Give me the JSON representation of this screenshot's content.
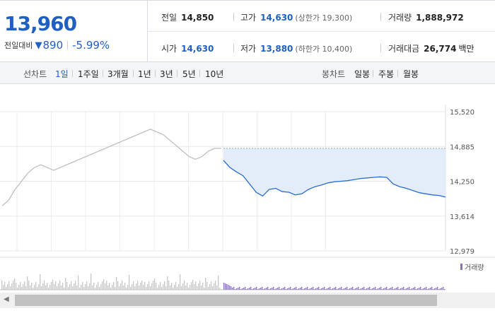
{
  "quote": {
    "price": "13,960",
    "change_label": "전일대비",
    "change_arrow": "▼",
    "change": "890",
    "change_pct": "-5.99%"
  },
  "stats": {
    "prev_label": "전일",
    "prev": "14,850",
    "high_label": "고가",
    "high": "14,630",
    "upper_limit": "(상한가 19,300)",
    "volume_label": "거래량",
    "volume": "1,888,972",
    "open_label": "시가",
    "open": "14,630",
    "low_label": "저가",
    "low": "13,880",
    "lower_limit": "(하한가 10,400)",
    "amount_label": "거래대금",
    "amount": "26,774",
    "amount_unit": "백만"
  },
  "tabs": {
    "line_label": "선차트",
    "periods": [
      "1일",
      "1주일",
      "3개월",
      "1년",
      "3년",
      "5년",
      "10년"
    ],
    "active_period": "1일",
    "candle_label": "봉차트",
    "candles": [
      "일봉",
      "주봉",
      "월봉"
    ]
  },
  "chart_data": {
    "type": "line",
    "y_ticks": [
      "15,520",
      "14,885",
      "14,250",
      "13,614",
      "12,979"
    ],
    "ylim": [
      12979,
      15520
    ],
    "prev_close": 14850,
    "prev_day_series": [
      [
        0,
        13800
      ],
      [
        1,
        13900
      ],
      [
        2,
        14100
      ],
      [
        3,
        14250
      ],
      [
        4,
        14400
      ],
      [
        5,
        14500
      ],
      [
        6,
        14550
      ],
      [
        7,
        14500
      ],
      [
        8,
        14450
      ],
      [
        9,
        14500
      ],
      [
        10,
        14550
      ],
      [
        11,
        14600
      ],
      [
        12,
        14650
      ],
      [
        13,
        14700
      ],
      [
        14,
        14750
      ],
      [
        15,
        14800
      ],
      [
        16,
        14850
      ],
      [
        17,
        14900
      ],
      [
        18,
        14950
      ],
      [
        19,
        15000
      ],
      [
        20,
        15050
      ],
      [
        21,
        15100
      ],
      [
        22,
        15150
      ],
      [
        23,
        15200
      ],
      [
        24,
        15150
      ],
      [
        25,
        15100
      ],
      [
        26,
        15000
      ],
      [
        27,
        14900
      ],
      [
        28,
        14800
      ],
      [
        29,
        14700
      ],
      [
        30,
        14650
      ],
      [
        31,
        14700
      ],
      [
        32,
        14800
      ],
      [
        33,
        14850
      ],
      [
        34,
        14850
      ]
    ],
    "today_series": [
      [
        0,
        14630
      ],
      [
        1,
        14500
      ],
      [
        2,
        14420
      ],
      [
        3,
        14350
      ],
      [
        4,
        14200
      ],
      [
        5,
        14050
      ],
      [
        6,
        13980
      ],
      [
        7,
        14100
      ],
      [
        8,
        14120
      ],
      [
        9,
        14060
      ],
      [
        10,
        14050
      ],
      [
        11,
        14000
      ],
      [
        12,
        14020
      ],
      [
        13,
        14100
      ],
      [
        14,
        14150
      ],
      [
        15,
        14180
      ],
      [
        16,
        14220
      ],
      [
        17,
        14240
      ],
      [
        18,
        14250
      ],
      [
        19,
        14260
      ],
      [
        20,
        14280
      ],
      [
        21,
        14300
      ],
      [
        22,
        14310
      ],
      [
        23,
        14320
      ],
      [
        24,
        14330
      ],
      [
        25,
        14320
      ],
      [
        26,
        14200
      ],
      [
        27,
        14150
      ],
      [
        28,
        14120
      ],
      [
        29,
        14080
      ],
      [
        30,
        14040
      ],
      [
        31,
        14020
      ],
      [
        32,
        14000
      ],
      [
        33,
        13990
      ],
      [
        34,
        13960
      ]
    ],
    "legend": "거래량"
  }
}
